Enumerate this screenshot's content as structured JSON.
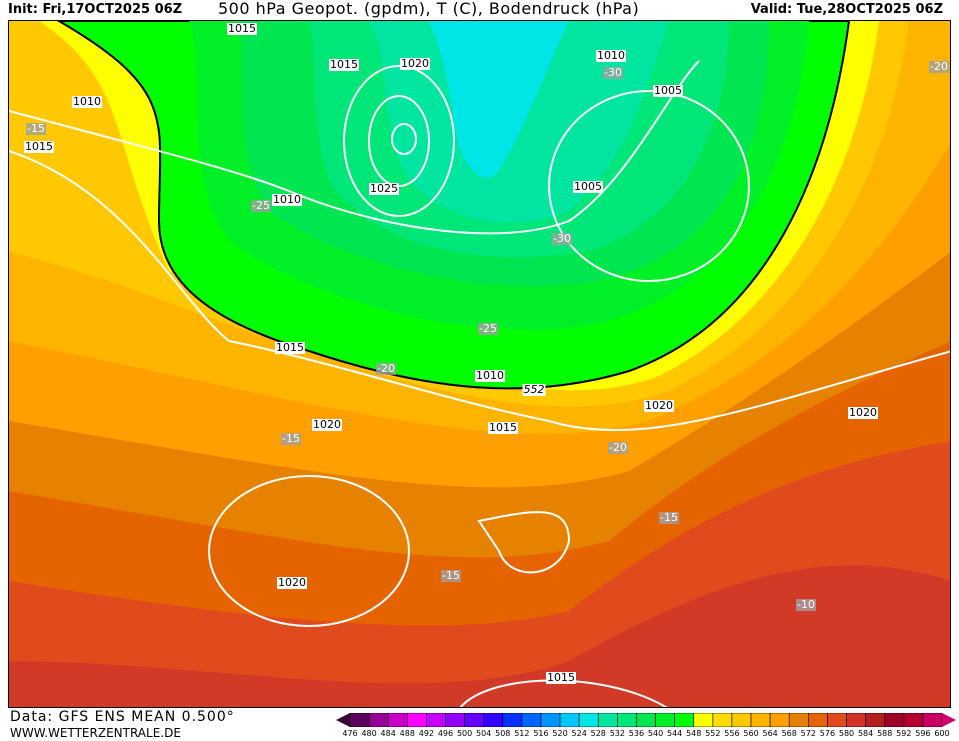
{
  "header": {
    "init": "Init: Fri,17OCT2025 06Z",
    "title": "500 hPa Geopot. (gpdm), T (C), Bodendruck (hPa)",
    "valid": "Valid: Tue,28OCT2025 06Z"
  },
  "map": {
    "isobar_labels": [
      "1015",
      "1010",
      "1015",
      "1015",
      "1020",
      "1025",
      "1010",
      "1010",
      "1005",
      "1005",
      "1015",
      "1010",
      "1015",
      "1020",
      "1020",
      "1020",
      "1020",
      "1015"
    ],
    "geopotential_label": "552",
    "temperature_labels": [
      "-30",
      "-20",
      "-15",
      "-25",
      "-30",
      "-25",
      "-20",
      "-15",
      "-20",
      "-15",
      "-15",
      "-10"
    ]
  },
  "footer": {
    "data_source": "Data: GFS ENS MEAN 0.500°",
    "website": "WWW.WETTERZENTRALE.DE"
  },
  "legend": {
    "ticks": [
      "476",
      "480",
      "484",
      "488",
      "492",
      "496",
      "500",
      "504",
      "508",
      "512",
      "516",
      "520",
      "524",
      "528",
      "532",
      "536",
      "540",
      "544",
      "548",
      "552",
      "556",
      "560",
      "564",
      "568",
      "572",
      "576",
      "580",
      "584",
      "588",
      "592",
      "596",
      "600"
    ],
    "colors": [
      "#5a005a",
      "#960096",
      "#c800c8",
      "#ff00ff",
      "#c800ff",
      "#9600ff",
      "#6400ff",
      "#3200ff",
      "#0032ff",
      "#0064ff",
      "#0096ff",
      "#00c8ff",
      "#00e6e6",
      "#00e6a0",
      "#00e678",
      "#00e650",
      "#00f028",
      "#00ff00",
      "#ffff00",
      "#ffdc00",
      "#ffc800",
      "#ffb400",
      "#ffa000",
      "#e68200",
      "#e66400",
      "#e04b1e",
      "#d23228",
      "#b41e1e",
      "#a00028",
      "#b40032",
      "#c80064"
    ]
  }
}
